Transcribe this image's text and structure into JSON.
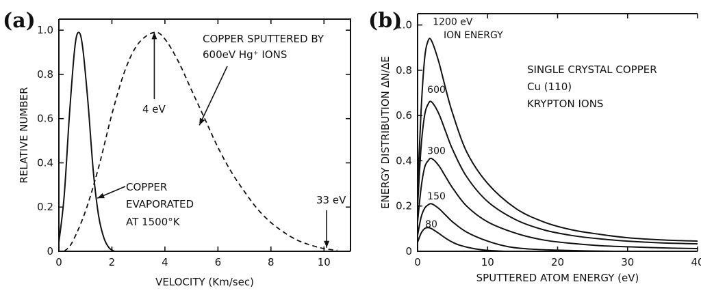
{
  "chart_data": [
    {
      "panel": "(a)",
      "type": "line",
      "xlabel": "VELOCITY (Km/sec)",
      "ylabel": "RELATIVE NUMBER",
      "xlim": [
        0,
        11
      ],
      "ylim": [
        0,
        1.05
      ],
      "xticks": [
        0,
        2,
        4,
        6,
        8,
        10
      ],
      "xtick_labels": [
        "0",
        "2",
        "4",
        "6",
        "8",
        "10"
      ],
      "yticks": [
        0,
        0.2,
        0.4,
        0.6,
        0.8,
        1.0
      ],
      "ytick_labels": [
        "0",
        "0.2",
        "0.4",
        "0.6",
        "0.8",
        "1.0"
      ],
      "grid": false,
      "series": [
        {
          "name": "COPPER EVAPORATED AT 1500°K",
          "style": "solid",
          "x": [
            0.0,
            0.2,
            0.4,
            0.6,
            0.75,
            0.9,
            1.1,
            1.3,
            1.5,
            1.7,
            1.9,
            2.1
          ],
          "y": [
            0.04,
            0.25,
            0.62,
            0.92,
            0.99,
            0.92,
            0.67,
            0.36,
            0.16,
            0.06,
            0.015,
            0.0
          ]
        },
        {
          "name": "COPPER SPUTTERED BY 600eV Hg⁺ IONS",
          "style": "dashed",
          "x": [
            0.2,
            0.5,
            1.0,
            1.5,
            2.0,
            2.5,
            3.0,
            3.6,
            4.0,
            4.5,
            5.0,
            5.5,
            6.0,
            6.5,
            7.0,
            7.5,
            8.0,
            8.5,
            9.0,
            9.5,
            10.0,
            10.5
          ],
          "y": [
            0.0,
            0.04,
            0.18,
            0.38,
            0.62,
            0.82,
            0.94,
            0.99,
            0.96,
            0.86,
            0.73,
            0.6,
            0.47,
            0.36,
            0.27,
            0.19,
            0.13,
            0.085,
            0.05,
            0.028,
            0.012,
            0.004
          ]
        }
      ],
      "annotations": [
        {
          "label_lines": [
            "COPPER SPUTTERED BY",
            "600eV Hg⁺ IONS"
          ],
          "arrow_to_x": 5.3,
          "arrow_to_y": 0.57
        },
        {
          "label": "4 eV",
          "arrow_to_x": 3.6,
          "arrow_to_y": 0.99
        },
        {
          "label_lines": [
            "COPPER",
            "EVAPORATED",
            "AT 1500°K"
          ],
          "arrow_to_x": 1.45,
          "arrow_to_y": 0.24
        },
        {
          "label": "33 eV",
          "arrow_to_x": 10.1,
          "arrow_to_y": 0.01
        }
      ]
    },
    {
      "panel": "(b)",
      "type": "line",
      "xlabel": "SPUTTERED ATOM ENERGY (eV)",
      "ylabel": "ENERGY DISTRIBUTION ΔN/ΔE",
      "xlim": [
        0,
        40
      ],
      "ylim": [
        0,
        1.05
      ],
      "xticks": [
        0,
        10,
        20,
        30,
        40
      ],
      "xtick_labels": [
        "0",
        "10",
        "20",
        "30",
        "40"
      ],
      "yticks": [
        0,
        0.2,
        0.4,
        0.6,
        0.8,
        1.0
      ],
      "ytick_labels": [
        "0",
        "0.2",
        "0.4",
        "0.6",
        "0.8",
        "1.0"
      ],
      "grid": false,
      "legend_title": "ION ENERGY",
      "annotation_lines": [
        "SINGLE CRYSTAL COPPER",
        "Cu (110)",
        "KRYPTON IONS"
      ],
      "series": [
        {
          "name": "1200 eV",
          "label_at": [
            0.8,
            1.0
          ],
          "x": [
            0,
            0.5,
            1,
            1.5,
            2,
            3,
            4,
            5,
            7,
            10,
            14,
            18,
            22,
            26,
            30,
            35,
            40
          ],
          "y": [
            0.26,
            0.62,
            0.85,
            0.93,
            0.93,
            0.84,
            0.72,
            0.61,
            0.44,
            0.3,
            0.19,
            0.13,
            0.095,
            0.075,
            0.06,
            0.05,
            0.045
          ]
        },
        {
          "name": "600",
          "label_at": [
            0.8,
            0.7
          ],
          "x": [
            0,
            0.5,
            1,
            1.5,
            2,
            3,
            4,
            5,
            7,
            10,
            14,
            18,
            22,
            26,
            30,
            35,
            40
          ],
          "y": [
            0.2,
            0.46,
            0.6,
            0.65,
            0.66,
            0.61,
            0.53,
            0.45,
            0.33,
            0.22,
            0.14,
            0.095,
            0.07,
            0.055,
            0.045,
            0.037,
            0.033
          ]
        },
        {
          "name": "300",
          "label_at": [
            0.8,
            0.43
          ],
          "x": [
            0,
            0.5,
            1,
            1.5,
            2,
            3,
            4,
            5,
            7,
            10,
            14,
            18,
            22,
            26,
            30,
            35,
            40
          ],
          "y": [
            0.13,
            0.28,
            0.37,
            0.4,
            0.41,
            0.38,
            0.33,
            0.28,
            0.2,
            0.13,
            0.08,
            0.05,
            0.035,
            0.025,
            0.02,
            0.015,
            0.012
          ]
        },
        {
          "name": "150",
          "label_at": [
            0.8,
            0.23
          ],
          "x": [
            0,
            0.5,
            1,
            1.5,
            2,
            3,
            4,
            5,
            7,
            10,
            13,
            16,
            20,
            24,
            28
          ],
          "y": [
            0.07,
            0.15,
            0.19,
            0.205,
            0.21,
            0.19,
            0.16,
            0.13,
            0.085,
            0.045,
            0.02,
            0.01,
            0.005,
            0.002,
            0.0
          ]
        },
        {
          "name": "80",
          "label_at": [
            0.5,
            0.105
          ],
          "x": [
            0,
            0.5,
            1,
            1.5,
            2,
            3,
            4,
            5,
            6,
            8,
            10,
            12.5
          ],
          "y": [
            0.04,
            0.08,
            0.1,
            0.105,
            0.1,
            0.08,
            0.058,
            0.04,
            0.027,
            0.012,
            0.004,
            0.0
          ]
        }
      ]
    }
  ]
}
